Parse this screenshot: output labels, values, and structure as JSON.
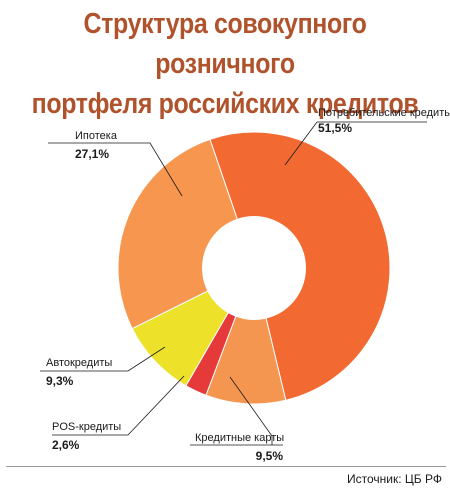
{
  "chart_data": {
    "type": "pie",
    "variant": "donut",
    "title_lines": [
      "Структура совокупного розничного",
      "портфеля российских кредитов"
    ],
    "slices": [
      {
        "label": "Потребительские кредиты",
        "value": 51.5,
        "value_text": "51,5%",
        "color": "#f26a32"
      },
      {
        "label": "Кредитные карты",
        "value": 9.5,
        "value_text": "9,5%",
        "color": "#f59650"
      },
      {
        "label": "POS-кредиты",
        "value": 2.6,
        "value_text": "2,6%",
        "color": "#e6393a"
      },
      {
        "label": "Автокредиты",
        "value": 9.3,
        "value_text": "9,3%",
        "color": "#ede229"
      },
      {
        "label": "Ипотека",
        "value": 27.1,
        "value_text": "27,1%",
        "color": "#f7974f"
      }
    ],
    "legend": "callouts"
  },
  "source": "Источник: ЦБ РФ"
}
